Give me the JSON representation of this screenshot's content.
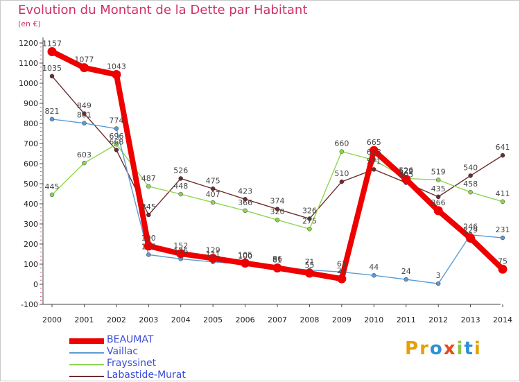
{
  "title": "Evolution du Montant de la Dette par Habitant",
  "unit_label": "(en €)",
  "logo": {
    "text": "Proxiti",
    "letters": [
      "P",
      "r",
      "o",
      "x",
      "i",
      "t",
      "i"
    ],
    "colors": [
      "#e6a000",
      "#e6a000",
      "#2f8fd8",
      "#e84a1a",
      "#8bc34a",
      "#2f8fd8",
      "#e6a000"
    ]
  },
  "chart_data": {
    "type": "line",
    "title": "Evolution du Montant de la Dette par Habitant",
    "ylabel": "(en €)",
    "xlabel": "",
    "x": [
      "2000",
      "2001",
      "2002",
      "2003",
      "2004",
      "2005",
      "2006",
      "2007",
      "2008",
      "2009",
      "2010",
      "2011",
      "2012",
      "2013",
      "2014"
    ],
    "ylim": [
      -100,
      1200
    ],
    "yticks": [
      -100,
      0,
      100,
      200,
      300,
      400,
      500,
      600,
      700,
      800,
      900,
      1000,
      1100,
      1200
    ],
    "grid": false,
    "legend_position": "bottom-left",
    "series": [
      {
        "name": "BEAUMAT",
        "color": "#ee0000",
        "values": [
          1157,
          1077,
          1043,
          190,
          152,
          129,
          105,
          81,
          55,
          27,
          665,
          522,
          366,
          229,
          75
        ],
        "labels": [
          "1157",
          "1077",
          "1043",
          "190",
          "152",
          "129",
          "105",
          "81",
          "55",
          "27",
          "665",
          "522",
          "366",
          "229",
          "75"
        ]
      },
      {
        "name": "Vaillac",
        "color": "#5b9bd5",
        "values": [
          821,
          801,
          774,
          147,
          126,
          111,
          100,
          86,
          71,
          61,
          44,
          24,
          3,
          246,
          231
        ],
        "labels": [
          "821",
          "801",
          "774",
          "147",
          "126",
          "111",
          "100",
          "86",
          "71",
          "61",
          "44",
          "24",
          "3",
          "246",
          "231"
        ]
      },
      {
        "name": "Frayssinet",
        "color": "#8fd650",
        "values": [
          445,
          603,
          696,
          487,
          448,
          407,
          366,
          320,
          275,
          660,
          618,
          526,
          519,
          458,
          411
        ],
        "labels": [
          "445",
          "603",
          "696",
          "487",
          "448",
          "407",
          "366",
          "320",
          "275",
          "660",
          "618",
          "526",
          "519",
          "458",
          "411"
        ]
      },
      {
        "name": "Labastide-Murat",
        "color": "#6b2d2d",
        "values": [
          1035,
          849,
          668,
          345,
          526,
          475,
          423,
          374,
          326,
          510,
          571,
          505,
          435,
          540,
          641
        ],
        "labels": [
          "1035",
          "849",
          "668",
          "345",
          "526",
          "475",
          "423",
          "374",
          "326",
          "510",
          "571",
          "505",
          "435",
          "540",
          "641"
        ]
      }
    ]
  }
}
